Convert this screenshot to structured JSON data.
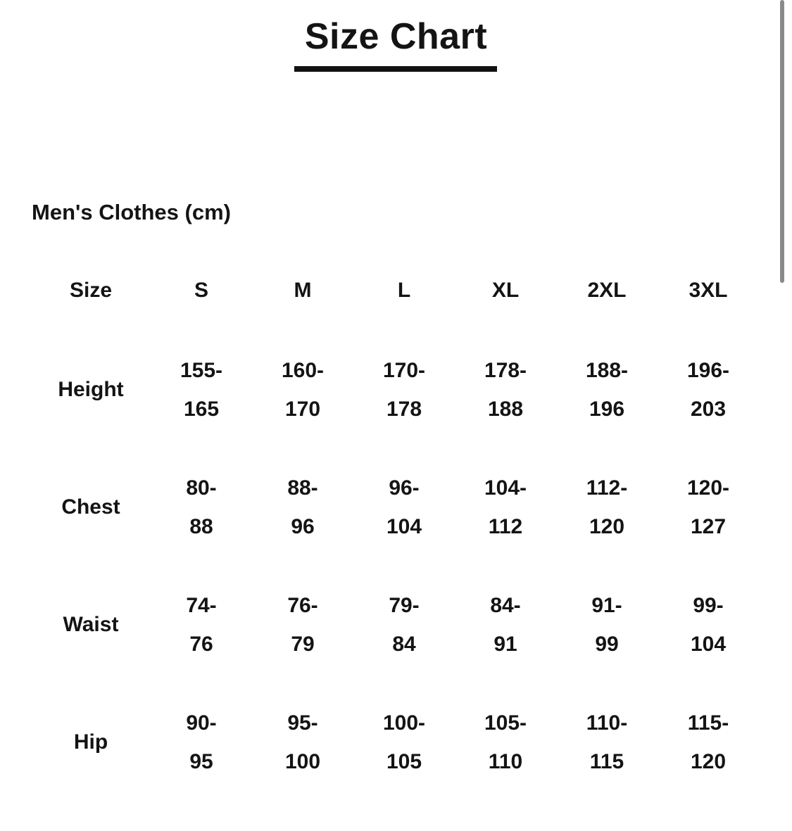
{
  "title": "Size Chart",
  "subtitle": "Men's Clothes (cm)",
  "table": {
    "header_label": "Size",
    "sizes": [
      "S",
      "M",
      "L",
      "XL",
      "2XL",
      "3XL"
    ],
    "rows": [
      {
        "label": "Height",
        "values": [
          [
            "155-",
            "165"
          ],
          [
            "160-",
            "170"
          ],
          [
            "170-",
            "178"
          ],
          [
            "178-",
            "188"
          ],
          [
            "188-",
            "196"
          ],
          [
            "196-",
            "203"
          ]
        ]
      },
      {
        "label": "Chest",
        "values": [
          [
            "80-",
            "88"
          ],
          [
            "88-",
            "96"
          ],
          [
            "96-",
            "104"
          ],
          [
            "104-",
            "112"
          ],
          [
            "112-",
            "120"
          ],
          [
            "120-",
            "127"
          ]
        ]
      },
      {
        "label": "Waist",
        "values": [
          [
            "74-",
            "76"
          ],
          [
            "76-",
            "79"
          ],
          [
            "79-",
            "84"
          ],
          [
            "84-",
            "91"
          ],
          [
            "91-",
            "99"
          ],
          [
            "99-",
            "104"
          ]
        ]
      },
      {
        "label": "Hip",
        "values": [
          [
            "90-",
            "95"
          ],
          [
            "95-",
            "100"
          ],
          [
            "100-",
            "105"
          ],
          [
            "105-",
            "110"
          ],
          [
            "110-",
            "115"
          ],
          [
            "115-",
            "120"
          ]
        ]
      }
    ]
  }
}
